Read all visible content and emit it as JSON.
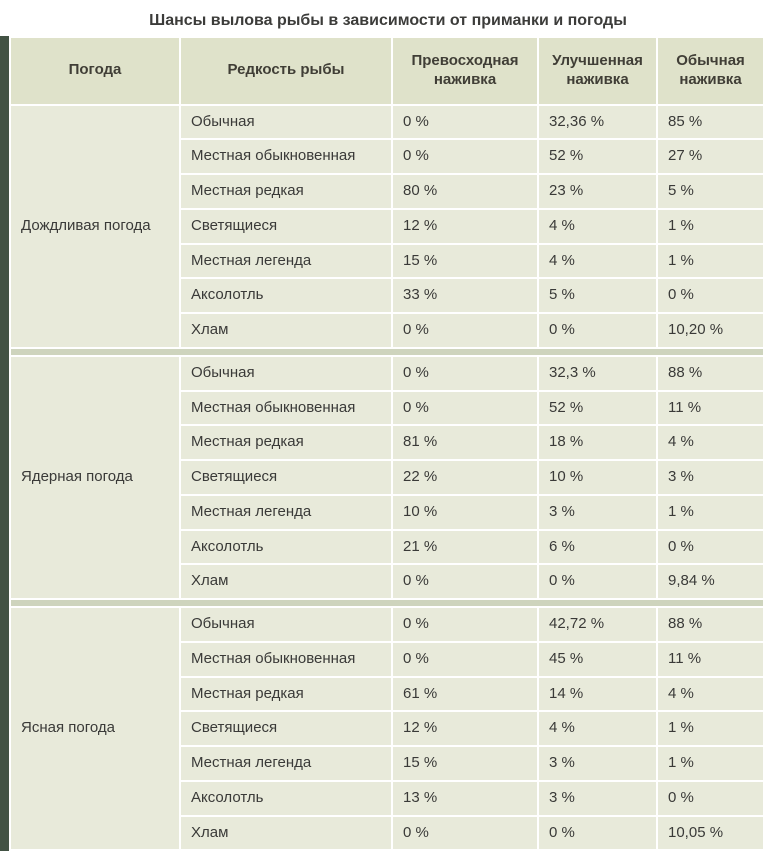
{
  "chart_data": {
    "type": "table",
    "title": "Шансы вылова рыбы в зависимости от приманки и погоды",
    "columns": [
      "Погода",
      "Редкость рыбы",
      "Превосходная наживка",
      "Улучшенная наживка",
      "Обычная наживка"
    ],
    "groups": [
      {
        "weather": "Дождливая погода",
        "rows": [
          {
            "rarity": "Обычная",
            "values": [
              "0 %",
              "32,36 %",
              "85 %"
            ]
          },
          {
            "rarity": "Местная обыкновенная",
            "values": [
              "0 %",
              "52 %",
              "27 %"
            ]
          },
          {
            "rarity": "Местная редкая",
            "values": [
              "80 %",
              "23 %",
              "5 %"
            ]
          },
          {
            "rarity": "Светящиеся",
            "values": [
              "12 %",
              "4 %",
              "1 %"
            ]
          },
          {
            "rarity": "Местная легенда",
            "values": [
              "15 %",
              "4 %",
              "1 %"
            ]
          },
          {
            "rarity": "Аксолотль",
            "values": [
              "33 %",
              "5 %",
              "0 %"
            ]
          },
          {
            "rarity": "Хлам",
            "values": [
              "0 %",
              "0 %",
              "10,20 %"
            ]
          }
        ]
      },
      {
        "weather": "Ядерная погода",
        "rows": [
          {
            "rarity": "Обычная",
            "values": [
              "0 %",
              "32,3 %",
              "88 %"
            ]
          },
          {
            "rarity": "Местная обыкновенная",
            "values": [
              "0 %",
              "52 %",
              "11 %"
            ]
          },
          {
            "rarity": "Местная редкая",
            "values": [
              "81 %",
              "18 %",
              "4 %"
            ]
          },
          {
            "rarity": "Светящиеся",
            "values": [
              "22 %",
              "10 %",
              "3 %"
            ]
          },
          {
            "rarity": "Местная легенда",
            "values": [
              "10 %",
              "3 %",
              "1 %"
            ]
          },
          {
            "rarity": "Аксолотль",
            "values": [
              "21 %",
              "6 %",
              "0 %"
            ]
          },
          {
            "rarity": "Хлам",
            "values": [
              "0 %",
              "0 %",
              "9,84 %"
            ]
          }
        ]
      },
      {
        "weather": "Ясная погода",
        "rows": [
          {
            "rarity": "Обычная",
            "values": [
              "0 %",
              "42,72 %",
              "88 %"
            ]
          },
          {
            "rarity": "Местная обыкновенная",
            "values": [
              "0 %",
              "45 %",
              "11 %"
            ]
          },
          {
            "rarity": "Местная редкая",
            "values": [
              "61 %",
              "14 %",
              "4 %"
            ]
          },
          {
            "rarity": "Светящиеся",
            "values": [
              "12 %",
              "4 %",
              "1 %"
            ]
          },
          {
            "rarity": "Местная легенда",
            "values": [
              "15 %",
              "3 %",
              "1 %"
            ]
          },
          {
            "rarity": "Аксолотль",
            "values": [
              "13 %",
              "3 %",
              "0 %"
            ]
          },
          {
            "rarity": "Хлам",
            "values": [
              "0 %",
              "0 %",
              "10,05 %"
            ]
          }
        ]
      }
    ],
    "layout": {
      "legend": "none",
      "grid": "white 2px cell borders",
      "group_column_rowspan": 7
    }
  },
  "colors": {
    "cell_bg": "#e8eada",
    "header_bg": "#dfe2ca",
    "separator_bg": "#ced4bd",
    "left_accent_bar": "#425244",
    "text": "#3a3a38"
  }
}
